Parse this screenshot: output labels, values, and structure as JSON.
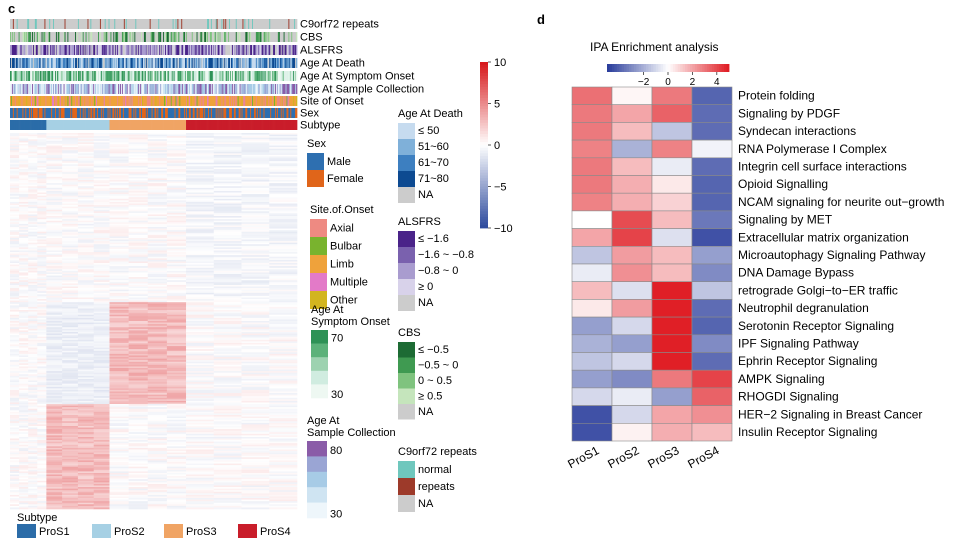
{
  "panels": {
    "c": "c",
    "d": "d"
  },
  "chart_data": [
    {
      "type": "heatmap",
      "panel": "c",
      "title": "",
      "annotation_tracks": [
        "C9orf72 repeats",
        "CBS",
        "ALSFRS",
        "Age At Death",
        "Age At Symptom Onset",
        "Age At Sample Collection",
        "Site of Onset",
        "Sex",
        "Subtype"
      ],
      "subtype_sizes": [
        38,
        66,
        80,
        116
      ],
      "colorbar": {
        "ticks": [
          10,
          5,
          0,
          -5,
          -10
        ],
        "range": [
          -10,
          10
        ],
        "low": "#2f4c9e",
        "mid": "#ffffff",
        "high": "#d7191c"
      },
      "legends": {
        "age_at_death": {
          "title": "Age At Death",
          "items": [
            {
              "label": "≤ 50",
              "color": "#c6dbef"
            },
            {
              "label": "51~60",
              "color": "#7fb0d9"
            },
            {
              "label": "61~70",
              "color": "#3d7fc0"
            },
            {
              "label": "71~80",
              "color": "#0d4a91"
            },
            {
              "label": "NA",
              "color": "#cccccc"
            }
          ]
        },
        "sex": {
          "title": "Sex",
          "items": [
            {
              "label": "Male",
              "color": "#2e6fb0"
            },
            {
              "label": "Female",
              "color": "#e0651a"
            }
          ]
        },
        "site_of_onset": {
          "title": "Site.of.Onset",
          "items": [
            {
              "label": "Axial",
              "color": "#ee8a82"
            },
            {
              "label": "Bulbar",
              "color": "#79b32e"
            },
            {
              "label": "Limb",
              "color": "#efa23b"
            },
            {
              "label": "Multiple",
              "color": "#e37ac8"
            },
            {
              "label": "Other",
              "color": "#d2b51f"
            }
          ]
        },
        "alsfrs": {
          "title": "ALSFRS",
          "items": [
            {
              "label": "≤ −1.6",
              "color": "#4a2389"
            },
            {
              "label": "−1.6 ~ −0.8",
              "color": "#7a61ae"
            },
            {
              "label": "−0.8 ~ 0",
              "color": "#a99ccf"
            },
            {
              "label": "≥ 0",
              "color": "#d8d2ea"
            },
            {
              "label": "NA",
              "color": "#cccccc"
            }
          ]
        },
        "age_at_symptom_onset": {
          "title_line1": "Age At",
          "title_line2": "Symptom Onset",
          "max_label": "70",
          "min_label": "30",
          "colors": [
            "#2e9256",
            "#5cb27a",
            "#9dd2b0",
            "#d0ece0",
            "#eef8f2"
          ]
        },
        "cbs": {
          "title": "CBS",
          "items": [
            {
              "label": "≤ −0.5",
              "color": "#1d6b34"
            },
            {
              "label": "−0.5 ~ 0",
              "color": "#3f9a51"
            },
            {
              "label": "0 ~ 0.5",
              "color": "#7fc37e"
            },
            {
              "label": "≥ 0.5",
              "color": "#c5e5bc"
            },
            {
              "label": "NA",
              "color": "#cccccc"
            }
          ]
        },
        "age_at_sample_collection": {
          "title_line1": "Age At",
          "title_line2": "Sample Collection",
          "max_label": "80",
          "min_label": "30",
          "colors": [
            "#8a5ca8",
            "#9aa5d4",
            "#a7cbe6",
            "#cfe4f2",
            "#eef6fb"
          ]
        },
        "c9orf72": {
          "title": "C9orf72 repeats",
          "items": [
            {
              "label": "normal",
              "color": "#6fc7bd"
            },
            {
              "label": "repeats",
              "color": "#9d3a2a"
            },
            {
              "label": "NA",
              "color": "#cccccc"
            }
          ]
        },
        "subtype": {
          "title": "Subtype",
          "items": [
            {
              "label": "ProS1",
              "color": "#2b6ca8"
            },
            {
              "label": "ProS2",
              "color": "#a6d0e4"
            },
            {
              "label": "ProS3",
              "color": "#f0a464"
            },
            {
              "label": "ProS4",
              "color": "#c91d2a"
            }
          ]
        }
      }
    },
    {
      "type": "heatmap",
      "panel": "d",
      "title": "IPA Enrichment analysis",
      "columns": [
        "ProS1",
        "ProS2",
        "ProS3",
        "ProS4"
      ],
      "rows": [
        "Protein folding",
        "Signaling by PDGF",
        "Syndecan interactions",
        "RNA Polymerase I Complex",
        "Integrin cell surface interactions",
        "Opioid Signalling",
        "NCAM signaling for neurite out−growth",
        "Signaling by MET",
        "Extracellular matrix organization",
        "Microautophagy Signaling Pathway",
        "DNA Damage Bypass",
        "retrograde Golgi−to−ER traffic",
        "Neutrophil degranulation",
        "Serotonin Receptor Signaling",
        "IPF Signaling Pathway",
        "Ephrin Receptor Signaling",
        "AMPK Signaling",
        "RHOGDI Signaling",
        "HER−2 Signaling in Breast Cancer",
        "Insulin Receptor Signaling"
      ],
      "values": [
        [
          3.2,
          0.2,
          3.0,
          -4.0
        ],
        [
          3.0,
          2.0,
          3.5,
          -3.8
        ],
        [
          3.0,
          1.5,
          -1.5,
          -3.8
        ],
        [
          2.8,
          -2.0,
          2.8,
          -0.3
        ],
        [
          3.0,
          1.5,
          -0.5,
          -3.8
        ],
        [
          3.0,
          1.8,
          0.5,
          -4.0
        ],
        [
          2.8,
          1.8,
          1.0,
          -4.0
        ],
        [
          0.0,
          4.0,
          1.5,
          -3.5
        ],
        [
          2.0,
          4.2,
          -0.8,
          -4.5
        ],
        [
          -1.5,
          2.2,
          1.5,
          -2.5
        ],
        [
          -0.5,
          2.5,
          1.5,
          -3.0
        ],
        [
          1.5,
          -0.8,
          5.0,
          -1.5
        ],
        [
          0.5,
          2.2,
          5.0,
          -3.8
        ],
        [
          -2.5,
          -1.0,
          5.2,
          -4.0
        ],
        [
          -2.0,
          -2.5,
          5.0,
          -3.0
        ],
        [
          -1.5,
          -1.0,
          5.0,
          -3.8
        ],
        [
          -2.5,
          -3.0,
          3.0,
          4.2
        ],
        [
          -1.0,
          -0.5,
          -2.5,
          3.5
        ],
        [
          -4.5,
          -1.0,
          2.0,
          2.5
        ],
        [
          -4.5,
          0.3,
          1.8,
          1.5
        ]
      ],
      "colorbar": {
        "ticks": [
          -2,
          0,
          2,
          4
        ],
        "range": [
          -5,
          5
        ],
        "low": "#2b3e9c",
        "mid": "#ffffff",
        "high": "#e01f26"
      }
    }
  ]
}
